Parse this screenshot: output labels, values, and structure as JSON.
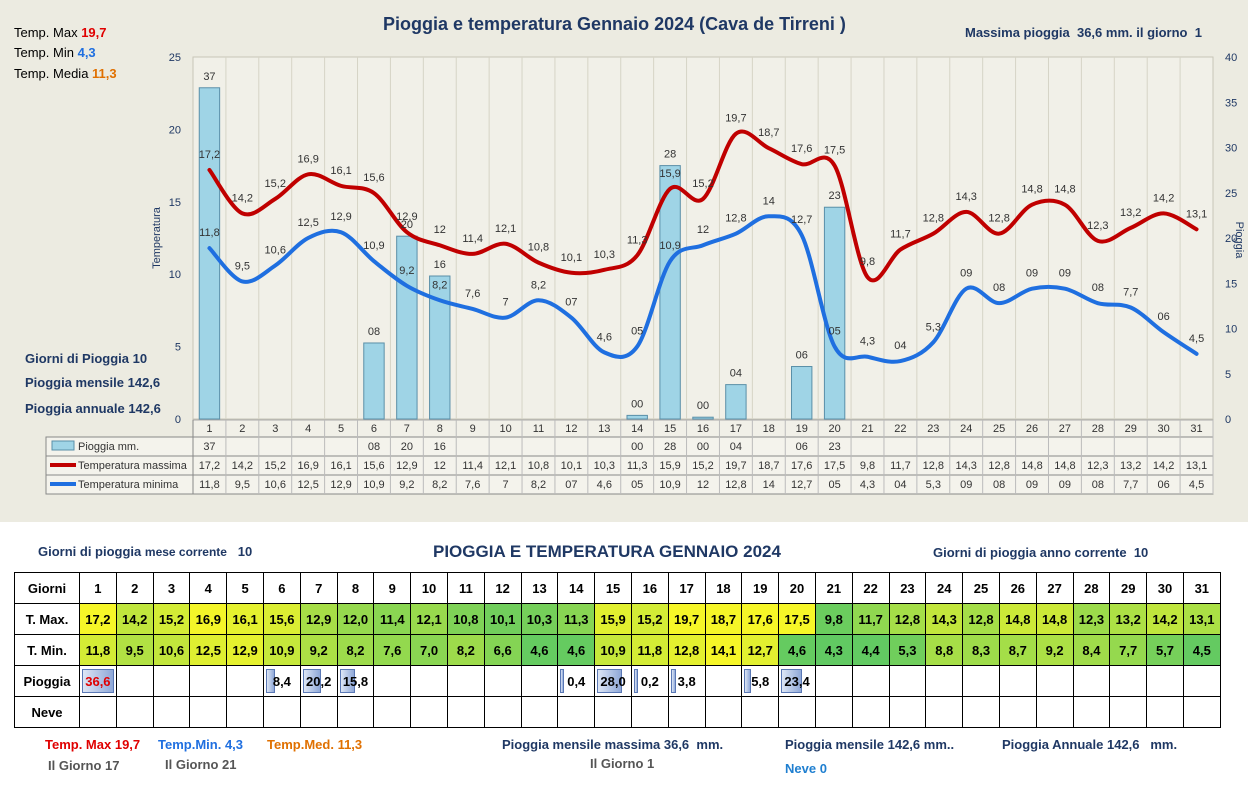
{
  "chart": {
    "title": "Pioggia e temperatura Gennaio 2024 (Cava de Tirreni )",
    "max_rain_note": "Massima pioggia  36,6 mm. il giorno  1",
    "temp_max_label": "Temp. Max",
    "temp_max_value": "19,7",
    "temp_min_label": "Temp. Min",
    "temp_min_value": "4,3",
    "temp_media_label": "Temp. Media",
    "temp_media_value": "11,3",
    "rain_days_label": "Giorni di Pioggia",
    "rain_days_value": "10",
    "rain_month_label": "Pioggia mensile",
    "rain_month_value": "142,6",
    "rain_year_label": "Pioggia annuale",
    "rain_year_value": "142,6",
    "ylabel_left": "Temperatura",
    "ylabel_right": "Pioggia",
    "left_ticks": [
      "0",
      "5",
      "10",
      "15",
      "20",
      "25"
    ],
    "right_ticks": [
      "0",
      "5",
      "10",
      "15",
      "20",
      "25",
      "30",
      "35",
      "40"
    ],
    "legend": {
      "rain": "Pioggia mm.",
      "tmax": "Temperatura massima",
      "tmin": "Temperatura minima"
    }
  },
  "chart_data": {
    "type": "bar+line",
    "x": [
      1,
      2,
      3,
      4,
      5,
      6,
      7,
      8,
      9,
      10,
      11,
      12,
      13,
      14,
      15,
      16,
      17,
      18,
      19,
      20,
      21,
      22,
      23,
      24,
      25,
      26,
      27,
      28,
      29,
      30,
      31
    ],
    "ylim_left": [
      0,
      25
    ],
    "ylim_right": [
      0,
      40
    ],
    "series": [
      {
        "name": "Pioggia mm.",
        "axis": "right",
        "type": "bar",
        "values": [
          36.6,
          null,
          null,
          null,
          null,
          8.4,
          20.2,
          15.8,
          null,
          null,
          null,
          null,
          null,
          0.4,
          28.0,
          0.2,
          3.8,
          null,
          5.8,
          23.4,
          null,
          null,
          null,
          null,
          null,
          null,
          null,
          null,
          null,
          null,
          null
        ],
        "labels": [
          "37",
          "",
          "",
          "",
          "",
          "08",
          "20",
          "16",
          "",
          "",
          "",
          "",
          "",
          "00",
          "28",
          "00",
          "04",
          "",
          "06",
          "23",
          "",
          "",
          "",
          "",
          "",
          "",
          "",
          "",
          "",
          "",
          ""
        ]
      },
      {
        "name": "Temperatura massima",
        "axis": "left",
        "type": "line",
        "values": [
          17.2,
          14.2,
          15.2,
          16.9,
          16.1,
          15.6,
          12.9,
          12,
          11.4,
          12.1,
          10.8,
          10.1,
          10.3,
          11.3,
          15.9,
          15.2,
          19.7,
          18.7,
          17.6,
          17.5,
          9.8,
          11.7,
          12.8,
          14.3,
          12.8,
          14.8,
          14.8,
          12.3,
          13.2,
          14.2,
          13.1
        ],
        "labels": [
          "17,2",
          "14,2",
          "15,2",
          "16,9",
          "16,1",
          "15,6",
          "12,9",
          "12",
          "11,4",
          "12,1",
          "10,8",
          "10,1",
          "10,3",
          "11,3",
          "15,9",
          "15,2",
          "19,7",
          "18,7",
          "17,6",
          "17,5",
          "9,8",
          "11,7",
          "12,8",
          "14,3",
          "12,8",
          "14,8",
          "14,8",
          "12,3",
          "13,2",
          "14,2",
          "13,1"
        ]
      },
      {
        "name": "Temperatura minima",
        "axis": "left",
        "type": "line",
        "values": [
          11.8,
          9.5,
          10.6,
          12.5,
          12.9,
          10.9,
          9.2,
          8.2,
          7.6,
          7,
          8.2,
          7,
          4.6,
          5,
          10.9,
          12,
          12.8,
          14,
          12.7,
          5,
          4.3,
          4,
          5.3,
          9,
          8,
          9,
          9,
          8,
          7.7,
          6,
          4.5
        ],
        "labels": [
          "11,8",
          "9,5",
          "10,6",
          "12,5",
          "12,9",
          "10,9",
          "9,2",
          "8,2",
          "7,6",
          "7",
          "8,2",
          "07",
          "4,6",
          "05",
          "10,9",
          "12",
          "12,8",
          "14",
          "12,7",
          "05",
          "4,3",
          "04",
          "5,3",
          "09",
          "08",
          "09",
          "09",
          "08",
          "7,7",
          "06",
          "4,5"
        ]
      }
    ]
  },
  "summary": {
    "rain_days_month_label": "Giorni di pioggia",
    "rain_days_month_suffix": "mese corrente",
    "rain_days_month_value": "10",
    "title": "PIOGGIA E TEMPERATURA GENNAIO 2024",
    "rain_days_year_label": "Giorni di pioggia anno corrente",
    "rain_days_year_value": "10",
    "header_label": "Giorni",
    "tmax_label": "T. Max.",
    "tmin_label": "T. Min.",
    "rain_label": "Pioggia",
    "snow_label": "Neve",
    "days": [
      "1",
      "2",
      "3",
      "4",
      "5",
      "6",
      "7",
      "8",
      "9",
      "10",
      "11",
      "12",
      "13",
      "14",
      "15",
      "16",
      "17",
      "18",
      "19",
      "20",
      "21",
      "22",
      "23",
      "24",
      "25",
      "26",
      "27",
      "28",
      "29",
      "30",
      "31"
    ],
    "tmax": [
      "17,2",
      "14,2",
      "15,2",
      "16,9",
      "16,1",
      "15,6",
      "12,9",
      "12,0",
      "11,4",
      "12,1",
      "10,8",
      "10,1",
      "10,3",
      "11,3",
      "15,9",
      "15,2",
      "19,7",
      "18,7",
      "17,6",
      "17,5",
      "9,8",
      "11,7",
      "12,8",
      "14,3",
      "12,8",
      "14,8",
      "14,8",
      "12,3",
      "13,2",
      "14,2",
      "13,1"
    ],
    "tmin": [
      "11,8",
      "9,5",
      "10,6",
      "12,5",
      "12,9",
      "10,9",
      "9,2",
      "8,2",
      "7,6",
      "7,0",
      "8,2",
      "6,6",
      "4,6",
      "4,6",
      "10,9",
      "11,8",
      "12,8",
      "14,1",
      "12,7",
      "4,6",
      "4,3",
      "4,4",
      "5,3",
      "8,8",
      "8,3",
      "8,7",
      "9,2",
      "8,4",
      "7,7",
      "5,7",
      "4,5"
    ],
    "tmax_num": [
      17.2,
      14.2,
      15.2,
      16.9,
      16.1,
      15.6,
      12.9,
      12.0,
      11.4,
      12.1,
      10.8,
      10.1,
      10.3,
      11.3,
      15.9,
      15.2,
      19.7,
      18.7,
      17.6,
      17.5,
      9.8,
      11.7,
      12.8,
      14.3,
      12.8,
      14.8,
      14.8,
      12.3,
      13.2,
      14.2,
      13.1
    ],
    "tmin_num": [
      11.8,
      9.5,
      10.6,
      12.5,
      12.9,
      10.9,
      9.2,
      8.2,
      7.6,
      7.0,
      8.2,
      6.6,
      4.6,
      4.6,
      10.9,
      11.8,
      12.8,
      14.1,
      12.7,
      4.6,
      4.3,
      4.4,
      5.3,
      8.8,
      8.3,
      8.7,
      9.2,
      8.4,
      7.7,
      5.7,
      4.5
    ],
    "rain": [
      "36,6",
      "",
      "",
      "",
      "",
      "8,4",
      "20,2",
      "15,8",
      "",
      "",
      "",
      "",
      "",
      "0,4",
      "28,0",
      "0,2",
      "3,8",
      "",
      "5,8",
      "23,4",
      "",
      "",
      "",
      "",
      "",
      "",
      "",
      "",
      "",
      "",
      ""
    ],
    "rain_num": [
      36.6,
      0,
      0,
      0,
      0,
      8.4,
      20.2,
      15.8,
      0,
      0,
      0,
      0,
      0,
      0.4,
      28.0,
      0.2,
      3.8,
      0,
      5.8,
      23.4,
      0,
      0,
      0,
      0,
      0,
      0,
      0,
      0,
      0,
      0,
      0
    ]
  },
  "footer": {
    "tmax_label": "Temp. Max",
    "tmax_value": "19,7",
    "tmax_day": "Il Giorno  17",
    "tmin_label": "Temp.Min.",
    "tmin_value": "4,3",
    "tmin_day": "Il Giorno 21",
    "tmed_label": "Temp.Med.",
    "tmed_value": "11,3",
    "rain_max_label": "Pioggia mensile massima",
    "rain_max_value": "36,6",
    "rain_max_unit": "mm.",
    "rain_max_day": "Il Giorno  1",
    "rain_month_label": "Pioggia mensile",
    "rain_month_value": "142,6",
    "rain_month_unit": "mm..",
    "rain_year_label": "Pioggia Annuale",
    "rain_year_value": "142,6",
    "rain_year_unit": "mm.",
    "snow_label": "Neve",
    "snow_value": "0"
  },
  "colors": {
    "tmax": "#c00000",
    "tmin": "#1f6fe0",
    "rain_bar": "#9fd4e6",
    "title": "#1f3864"
  }
}
